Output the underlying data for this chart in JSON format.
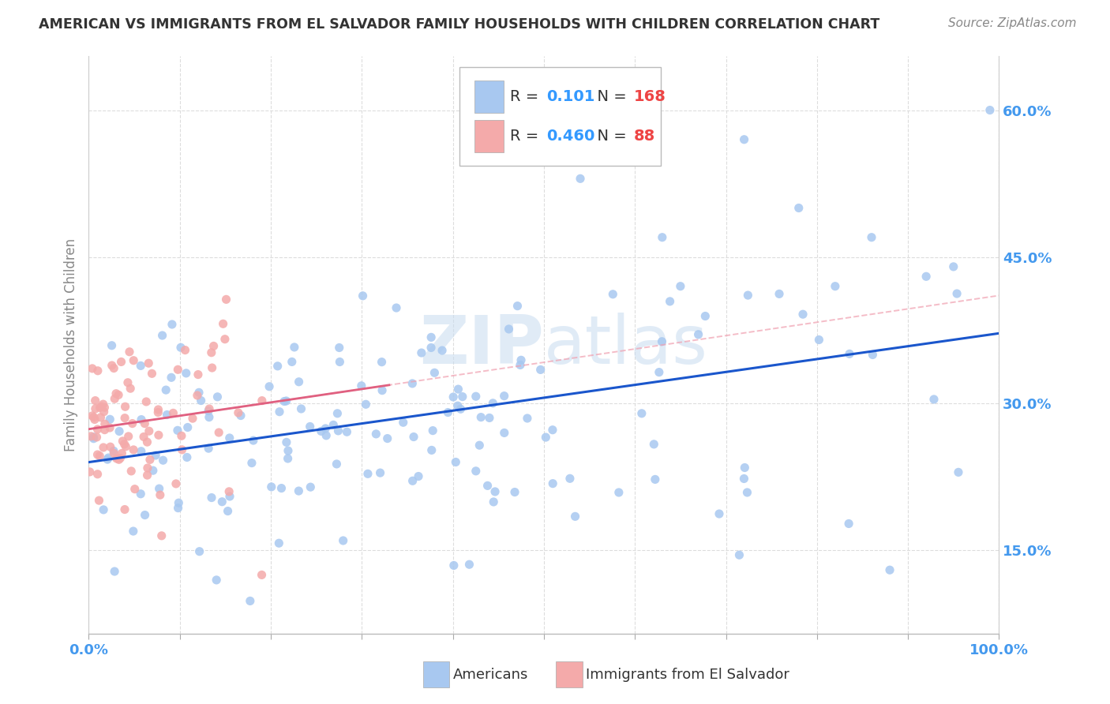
{
  "title": "AMERICAN VS IMMIGRANTS FROM EL SALVADOR FAMILY HOUSEHOLDS WITH CHILDREN CORRELATION CHART",
  "source": "Source: ZipAtlas.com",
  "ylabel": "Family Households with Children",
  "blue_color": "#A8C8F0",
  "pink_color": "#F4AAAA",
  "blue_line_color": "#1A56CC",
  "pink_line_color": "#E06080",
  "pink_dash_color": "#F0A0B0",
  "background_color": "#FFFFFF",
  "grid_color": "#DDDDDD",
  "title_color": "#333333",
  "label_color": "#888888",
  "axis_value_color": "#4499EE",
  "legend_R_value_color": "#3399FF",
  "legend_N_value_color": "#EE4444",
  "watermark_color": "#C8DCF0",
  "legend_label_blue": "Americans",
  "legend_label_pink": "Immigrants from El Salvador",
  "legend_R_blue": "0.101",
  "legend_N_blue": "168",
  "legend_R_pink": "0.460",
  "legend_N_pink": "88",
  "xlim": [
    0.0,
    1.0
  ],
  "ylim": [
    0.065,
    0.655
  ],
  "yticks": [
    0.15,
    0.3,
    0.45,
    0.6
  ],
  "ytick_labels": [
    "15.0%",
    "30.0%",
    "45.0%",
    "60.0%"
  ],
  "seed": 99
}
